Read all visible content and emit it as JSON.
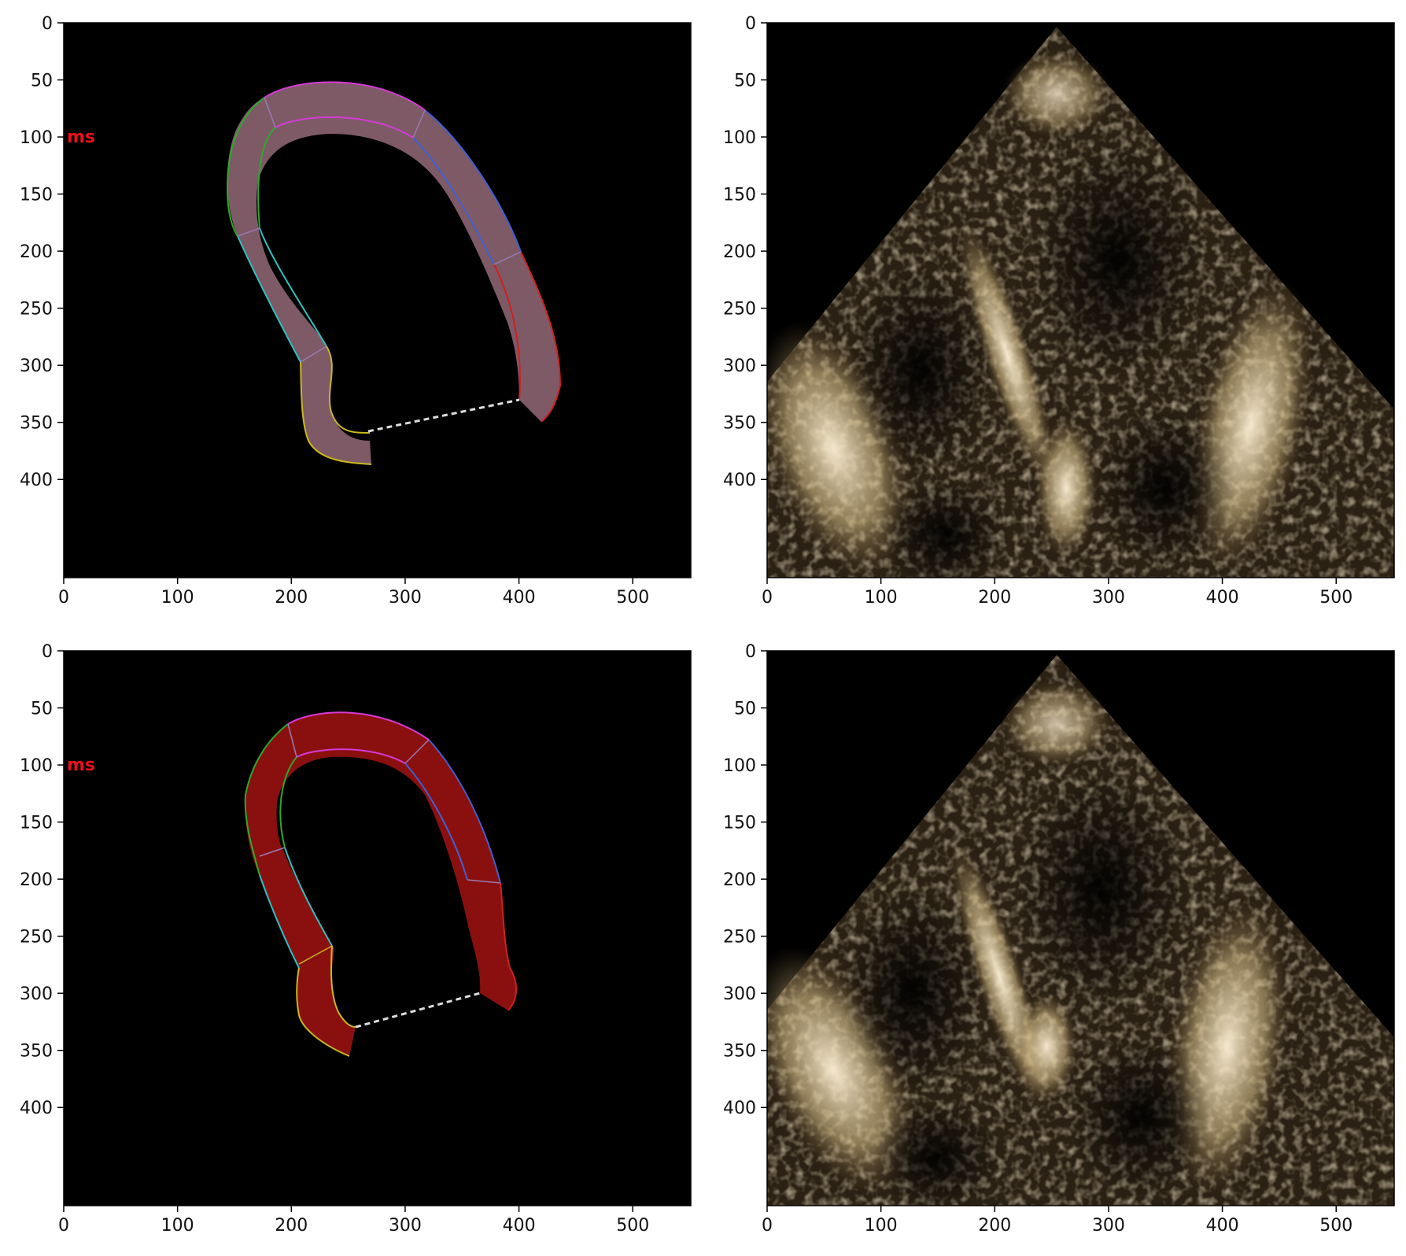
{
  "figure": {
    "x_ticks": [
      "0",
      "100",
      "200",
      "300",
      "400",
      "500"
    ],
    "y_ticks": [
      "0",
      "50",
      "100",
      "150",
      "200",
      "250",
      "300",
      "350",
      "400"
    ],
    "annotation_text": "ms",
    "annotation_color": "#e8101a",
    "background_color": "#000000"
  },
  "panels": [
    {
      "id": "top-left",
      "content": "left ventricle myocardial segmentation overlay",
      "fill_color": "#7e5a67"
    },
    {
      "id": "top-right",
      "content": "echocardiogram apical view image"
    },
    {
      "id": "bottom-left",
      "content": "left ventricle myocardial segmentation overlay",
      "fill_color": "#8a1010"
    },
    {
      "id": "bottom-right",
      "content": "echocardiogram apical view image"
    }
  ],
  "segment_colors": {
    "apex": "#d63ad6",
    "septal_apical": "#2ea82e",
    "septal_mid": "#30c0c0",
    "septal_basal": "#c8b820",
    "lateral_apical": "#4060d0",
    "lateral_basal": "#d02020",
    "mitral_line": "#dddddd"
  }
}
